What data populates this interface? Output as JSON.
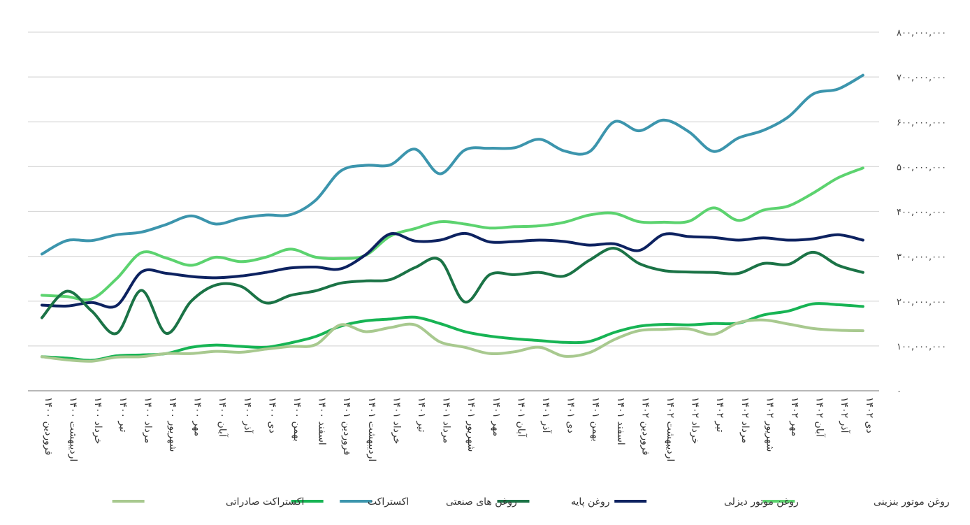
{
  "chart_data": {
    "type": "line",
    "title": "",
    "xlabel": "",
    "ylabel": "",
    "y_axis_position": "right",
    "ylim": [
      0,
      800000000
    ],
    "yticks": [
      0,
      100000000,
      200000000,
      300000000,
      400000000,
      500000000,
      600000000,
      700000000,
      800000000
    ],
    "ytick_labels": [
      "٠",
      "۱٠٠,٠٠٠,٠٠٠",
      "۲٠٠,٠٠٠,٠٠٠",
      "۳٠٠,٠٠٠,٠٠٠",
      "۴٠٠,٠٠٠,٠٠٠",
      "۵٠٠,٠٠٠,٠٠٠",
      "۶٠٠,٠٠٠,٠٠٠",
      "۷٠٠,٠٠٠,٠٠٠",
      "۸٠٠,٠٠٠,٠٠٠"
    ],
    "grid": true,
    "legend_position": "bottom",
    "categories": [
      "فروردین ۱۴۰۰",
      "اردیبهشت ۱۴۰۰",
      "خرداد ۱۴۰۰",
      "تیر ۱۴۰۰",
      "مرداد ۱۴۰۰",
      "شهریور ۱۴۰۰",
      "مهر ۱۴۰۰",
      "آبان ۱۴۰۰",
      "آذر ۱۴۰۰",
      "دی ۱۴۰۰",
      "بهمن ۱۴۰۰",
      "اسفند ۱۴۰۰",
      "فروردین ۱۴۰۱",
      "اردیبهشت ۱۴۰۱",
      "خرداد ۱۴۰۱",
      "تیر ۱۴۰۱",
      "مرداد ۱۴۰۱",
      "شهریور ۱۴۰۱",
      "مهر ۱۴۰۱",
      "آبان ۱۴۰۱",
      "آذر ۱۴۰۱",
      "دی ۱۴۰۱",
      "بهمن ۱۴۰۱",
      "اسفند ۱۴۰۱",
      "فروردین ۱۴۰۲",
      "اردیبهشت ۱۴۰۲",
      "خرداد ۱۴۰۲",
      "تیر ۱۴۰۲",
      "مرداد ۱۴۰۲",
      "شهریور ۱۴۰۲",
      "مهر ۱۴۰۲",
      "آبان ۱۴۰۲",
      "آذر ۱۴۰۲",
      "دی ۱۴۰۲"
    ],
    "series": [
      {
        "name": "روغن موتور بنزینی",
        "color": "#5cd36f",
        "values": [
          213000000,
          210000000,
          205000000,
          250000000,
          308000000,
          296000000,
          280000000,
          298000000,
          288000000,
          298000000,
          316000000,
          298000000,
          295000000,
          302000000,
          345000000,
          362000000,
          377000000,
          372000000,
          363000000,
          366000000,
          368000000,
          376000000,
          392000000,
          396000000,
          377000000,
          376000000,
          378000000,
          408000000,
          380000000,
          403000000,
          412000000,
          441000000,
          475000000,
          497000000
        ]
      },
      {
        "name": "روغن موتور دیزلی",
        "color": "#0d2260",
        "values": [
          191000000,
          189000000,
          197000000,
          190000000,
          265000000,
          262000000,
          255000000,
          252000000,
          256000000,
          264000000,
          274000000,
          276000000,
          272000000,
          303000000,
          350000000,
          334000000,
          336000000,
          351000000,
          332000000,
          333000000,
          336000000,
          333000000,
          325000000,
          328000000,
          313000000,
          349000000,
          344000000,
          342000000,
          336000000,
          341000000,
          336000000,
          339000000,
          348000000,
          336000000
        ]
      },
      {
        "name": "روغن پایه",
        "color": "#1b7346",
        "values": [
          163000000,
          222000000,
          178000000,
          128000000,
          224000000,
          128000000,
          200000000,
          236000000,
          233000000,
          196000000,
          213000000,
          223000000,
          240000000,
          245000000,
          248000000,
          275000000,
          292000000,
          198000000,
          259000000,
          259000000,
          264000000,
          256000000,
          291000000,
          318000000,
          284000000,
          268000000,
          265000000,
          264000000,
          262000000,
          284000000,
          282000000,
          309000000,
          280000000,
          264000000
        ]
      },
      {
        "name": "روغن های صنعتی",
        "color": "#3c95ad",
        "values": [
          305000000,
          335000000,
          335000000,
          348000000,
          354000000,
          371000000,
          390000000,
          372000000,
          385000000,
          392000000,
          393000000,
          425000000,
          490000000,
          503000000,
          504000000,
          539000000,
          484000000,
          537000000,
          541000000,
          542000000,
          561000000,
          535000000,
          533000000,
          600000000,
          580000000,
          604000000,
          578000000,
          534000000,
          564000000,
          581000000,
          611000000,
          662000000,
          673000000,
          704000000
        ]
      },
      {
        "name": "اکستراکت",
        "color": "#17b454",
        "values": [
          76000000,
          73000000,
          68000000,
          78000000,
          80000000,
          83000000,
          97000000,
          102000000,
          99000000,
          97000000,
          107000000,
          121000000,
          144000000,
          156000000,
          160000000,
          164000000,
          150000000,
          132000000,
          122000000,
          116000000,
          112000000,
          108000000,
          110000000,
          130000000,
          144000000,
          148000000,
          147000000,
          150000000,
          151000000,
          169000000,
          178000000,
          194000000,
          192000000,
          188000000
        ]
      },
      {
        "name": "اکستراکت صادراتی",
        "color": "#a8c98f",
        "values": [
          76000000,
          69000000,
          66000000,
          75000000,
          76000000,
          83000000,
          83000000,
          88000000,
          86000000,
          93000000,
          99000000,
          103000000,
          147000000,
          132000000,
          141000000,
          147000000,
          109000000,
          97000000,
          83000000,
          87000000,
          97000000,
          77000000,
          85000000,
          114000000,
          134000000,
          137000000,
          138000000,
          126000000,
          152000000,
          158000000,
          149000000,
          139000000,
          135000000,
          134000000
        ]
      }
    ]
  }
}
